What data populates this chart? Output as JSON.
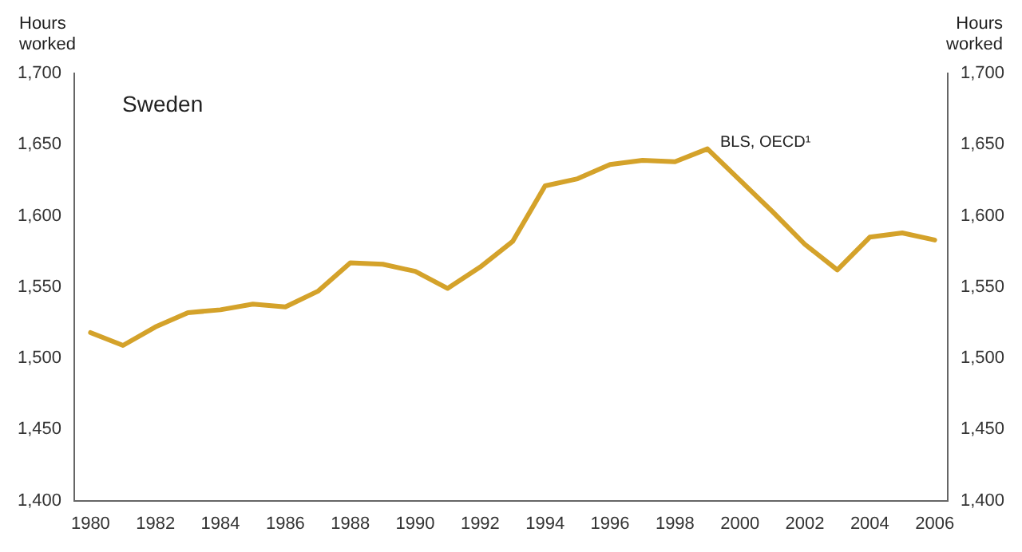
{
  "chart_data": {
    "type": "line",
    "title": "Sweden",
    "ylabel": "Hours worked",
    "y2label": "Hours worked",
    "x": [
      1980,
      1981,
      1982,
      1983,
      1984,
      1985,
      1986,
      1987,
      1988,
      1989,
      1990,
      1991,
      1992,
      1993,
      1994,
      1995,
      1996,
      1997,
      1998,
      1999,
      2000,
      2001,
      2002,
      2003,
      2004,
      2005,
      2006
    ],
    "series": [
      {
        "color": "#d4a22a",
        "values": [
          1518,
          1509,
          1522,
          1532,
          1534,
          1538,
          1536,
          1547,
          1567,
          1566,
          1561,
          1549,
          1564,
          1582,
          1621,
          1626,
          1636,
          1639,
          1638,
          1647,
          1625,
          1603,
          1580,
          1562,
          1585,
          1588,
          1583
        ]
      }
    ],
    "annotations": [
      {
        "text": "BLS, OECD¹",
        "x": 1999,
        "y": 1647
      }
    ],
    "xlim": [
      1979.5,
      2006.4
    ],
    "xticks": [
      1980,
      1982,
      1984,
      1986,
      1988,
      1990,
      1992,
      1994,
      1996,
      1998,
      2000,
      2002,
      2004,
      2006
    ],
    "ylim": [
      1400,
      1700
    ],
    "yticks": [
      {
        "value": 1400,
        "label": "1,400"
      },
      {
        "value": 1450,
        "label": "1,450"
      },
      {
        "value": 1500,
        "label": "1,500"
      },
      {
        "value": 1550,
        "label": "1,550"
      },
      {
        "value": 1600,
        "label": "1,600"
      },
      {
        "value": 1650,
        "label": "1,650"
      },
      {
        "value": 1700,
        "label": "1,700"
      }
    ],
    "y2lim": [
      1400,
      1700
    ],
    "y2ticks": [
      {
        "value": 1400,
        "label": "1,400"
      },
      {
        "value": 1450,
        "label": "1,450"
      },
      {
        "value": 1500,
        "label": "1,500"
      },
      {
        "value": 1550,
        "label": "1,550"
      },
      {
        "value": 1600,
        "label": "1,600"
      },
      {
        "value": 1650,
        "label": "1,650"
      },
      {
        "value": 1700,
        "label": "1,700"
      }
    ],
    "grid": false,
    "legend": false,
    "marker": "none",
    "line_style": "solid"
  }
}
